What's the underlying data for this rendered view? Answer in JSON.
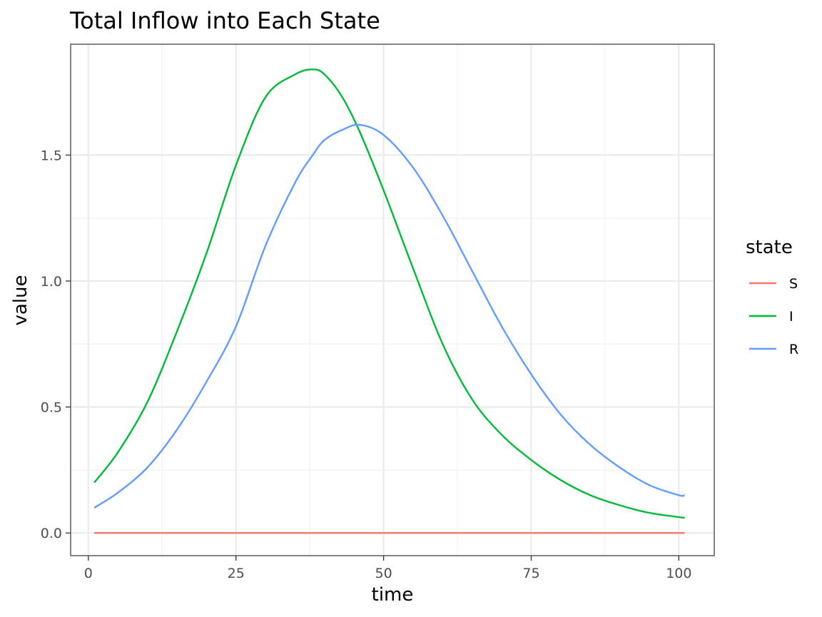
{
  "chart_data": {
    "type": "line",
    "title": "Total Inflow into Each State",
    "xlabel": "time",
    "ylabel": "value",
    "xlim": [
      -3,
      106
    ],
    "ylim": [
      -0.09,
      1.94
    ],
    "x_ticks": [
      0,
      25,
      50,
      75,
      100
    ],
    "y_ticks": [
      0.0,
      0.5,
      1.0,
      1.5
    ],
    "x_tick_labels": [
      "0",
      "25",
      "50",
      "75",
      "100"
    ],
    "y_tick_labels": [
      "0.0",
      "0.5",
      "1.0",
      "1.5"
    ],
    "grid": true,
    "legend": {
      "title": "state",
      "position": "right"
    },
    "x": [
      1,
      5,
      10,
      15,
      20,
      25,
      30,
      35,
      38,
      40,
      43,
      46,
      50,
      55,
      60,
      65,
      70,
      75,
      80,
      85,
      90,
      95,
      100,
      101
    ],
    "series": [
      {
        "name": "S",
        "color": "#F8766D",
        "values": [
          0,
          0,
          0,
          0,
          0,
          0,
          0,
          0,
          0,
          0,
          0,
          0,
          0,
          0,
          0,
          0,
          0,
          0,
          0,
          0,
          0,
          0,
          0,
          0
        ]
      },
      {
        "name": "I",
        "color": "#00BA38",
        "values": [
          0.2,
          0.32,
          0.52,
          0.8,
          1.11,
          1.46,
          1.73,
          1.82,
          1.84,
          1.82,
          1.73,
          1.59,
          1.36,
          1.05,
          0.75,
          0.53,
          0.39,
          0.29,
          0.21,
          0.15,
          0.11,
          0.08,
          0.063,
          0.06
        ]
      },
      {
        "name": "R",
        "color": "#619CFF",
        "values": [
          0.1,
          0.16,
          0.26,
          0.41,
          0.6,
          0.82,
          1.14,
          1.39,
          1.5,
          1.56,
          1.6,
          1.62,
          1.58,
          1.45,
          1.26,
          1.04,
          0.82,
          0.63,
          0.47,
          0.35,
          0.26,
          0.19,
          0.15,
          0.15
        ]
      }
    ]
  }
}
